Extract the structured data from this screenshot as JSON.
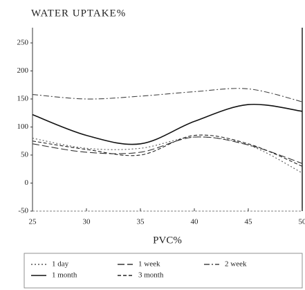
{
  "chart_data": {
    "type": "line",
    "title": "WATER UPTAKE%",
    "x_label": "PVC%",
    "x": [
      25,
      30,
      35,
      40,
      45,
      50
    ],
    "xlim": [
      25,
      50
    ],
    "xticks": [
      25,
      30,
      35,
      40,
      45,
      50
    ],
    "ylim": [
      -50,
      250
    ],
    "yticks": [
      -50,
      0,
      50,
      100,
      150,
      200,
      250
    ],
    "grid": false,
    "legend": "bottom",
    "series": [
      {
        "name": "1 day",
        "color": "#555555",
        "style": "dotted",
        "values": [
          80,
          62,
          62,
          82,
          68,
          18
        ]
      },
      {
        "name": "1 week",
        "color": "#333333",
        "style": "long-dash",
        "values": [
          70,
          55,
          55,
          82,
          68,
          35
        ]
      },
      {
        "name": "2 week",
        "color": "#444444",
        "style": "dash-dot",
        "values": [
          158,
          150,
          155,
          163,
          168,
          145
        ]
      },
      {
        "name": "1 month",
        "color": "#111111",
        "style": "solid",
        "values": [
          122,
          85,
          70,
          110,
          140,
          128
        ]
      },
      {
        "name": "3 month",
        "color": "#222222",
        "style": "dashed",
        "values": [
          75,
          60,
          50,
          85,
          70,
          30
        ]
      }
    ]
  }
}
